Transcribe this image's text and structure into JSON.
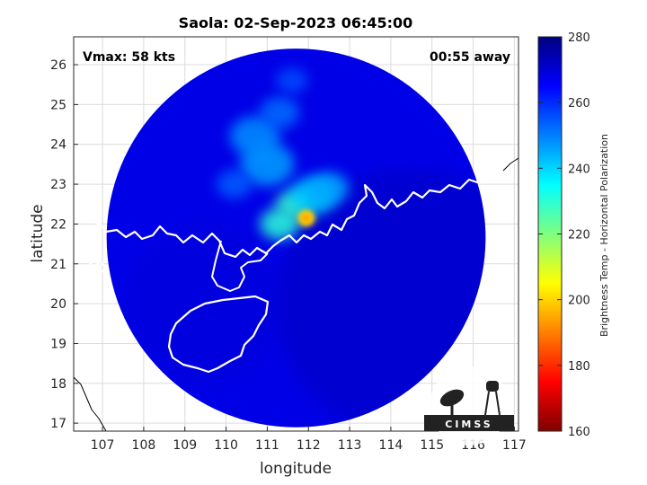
{
  "chart_data": {
    "type": "heatmap",
    "title": "Saola: 02-Sep-2023 06:45:00",
    "xlabel": "longitude",
    "ylabel": "latitude",
    "xlim": [
      106.3,
      117.1
    ],
    "ylim": [
      16.8,
      26.7
    ],
    "xticks": [
      107,
      108,
      109,
      110,
      111,
      112,
      113,
      114,
      115,
      116,
      117
    ],
    "yticks": [
      17,
      18,
      19,
      20,
      21,
      22,
      23,
      24,
      25,
      26
    ],
    "grid": true,
    "annotations": {
      "top_left": "Vmax: 58 kts",
      "top_right": "00:55 away"
    },
    "colorbar": {
      "label": "Brightness Temp - Horizontal Polarization",
      "min": 160,
      "max": 280,
      "ticks": [
        160,
        180,
        200,
        220,
        240,
        260,
        280
      ],
      "colormap": "jet"
    },
    "swath": {
      "center_lon": 111.7,
      "center_lat": 21.65,
      "radius_deg": 4.6
    },
    "storm_center": {
      "lon": 111.95,
      "lat": 22.15,
      "min_temp": 200
    },
    "features": [
      {
        "lon": 111.9,
        "lat": 22.2,
        "temp": 203
      },
      {
        "lon": 111.6,
        "lat": 22.5,
        "temp": 228
      },
      {
        "lon": 111.3,
        "lat": 22.0,
        "temp": 230
      },
      {
        "lon": 112.1,
        "lat": 22.7,
        "temp": 240
      },
      {
        "lon": 112.5,
        "lat": 22.9,
        "temp": 245
      },
      {
        "lon": 111.0,
        "lat": 23.5,
        "temp": 246
      },
      {
        "lon": 110.7,
        "lat": 24.2,
        "temp": 248
      },
      {
        "lon": 111.3,
        "lat": 24.8,
        "temp": 252
      },
      {
        "lon": 111.6,
        "lat": 25.6,
        "temp": 256
      },
      {
        "lon": 110.2,
        "lat": 23.0,
        "temp": 254
      }
    ],
    "logo": "CIMSS"
  }
}
